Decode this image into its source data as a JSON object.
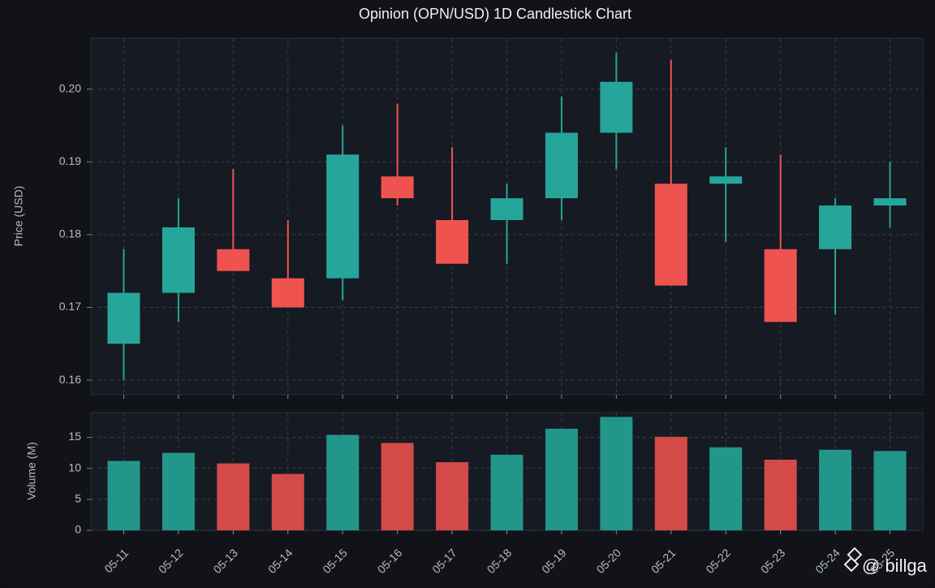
{
  "chart_data": [
    {
      "type": "candlestick",
      "title": "Opinion (OPN/USD) 1D Candlestick Chart",
      "y_label": "Price (USD)",
      "open": [
        0.165,
        0.172,
        0.178,
        0.174,
        0.174,
        0.188,
        0.182,
        0.182,
        0.185,
        0.194,
        0.187,
        0.187,
        0.178,
        0.178,
        0.184
      ],
      "high": [
        0.178,
        0.185,
        0.189,
        0.182,
        0.195,
        0.198,
        0.192,
        0.187,
        0.199,
        0.205,
        0.204,
        0.192,
        0.191,
        0.185,
        0.19
      ],
      "low": [
        0.16,
        0.168,
        0.175,
        0.17,
        0.171,
        0.184,
        0.176,
        0.176,
        0.182,
        0.189,
        0.173,
        0.179,
        0.168,
        0.169,
        0.181
      ],
      "close": [
        0.172,
        0.181,
        0.175,
        0.17,
        0.191,
        0.185,
        0.176,
        0.185,
        0.194,
        0.201,
        0.173,
        0.188,
        0.168,
        0.184,
        0.185
      ],
      "up_color": "#26a69a",
      "down_color": "#ef5350",
      "ylim": [
        0.158,
        0.207
      ],
      "yticks": [
        0.16,
        0.17,
        0.18,
        0.19,
        {
          "value": 0.2,
          "label": "0.20"
        }
      ],
      "grid": true
    },
    {
      "type": "bar",
      "y_label": "Volume (M)",
      "categories": [
        "05-11",
        "05-12",
        "05-13",
        "05-14",
        "05-15",
        "05-16",
        "05-17",
        "05-18",
        "05-19",
        "05-20",
        "05-21",
        "05-22",
        "05-23",
        "05-24",
        "05-25"
      ],
      "values": [
        11.2,
        12.5,
        10.8,
        9.1,
        15.4,
        14.1,
        11.0,
        12.2,
        16.4,
        18.3,
        15.1,
        13.4,
        11.4,
        13.0,
        12.8
      ],
      "up_color": "#23968b",
      "down_color": "#d44a48",
      "ylim": [
        0,
        19
      ],
      "yticks": [
        0,
        5,
        10,
        15
      ],
      "grid": true
    }
  ],
  "watermark": "@ billga"
}
